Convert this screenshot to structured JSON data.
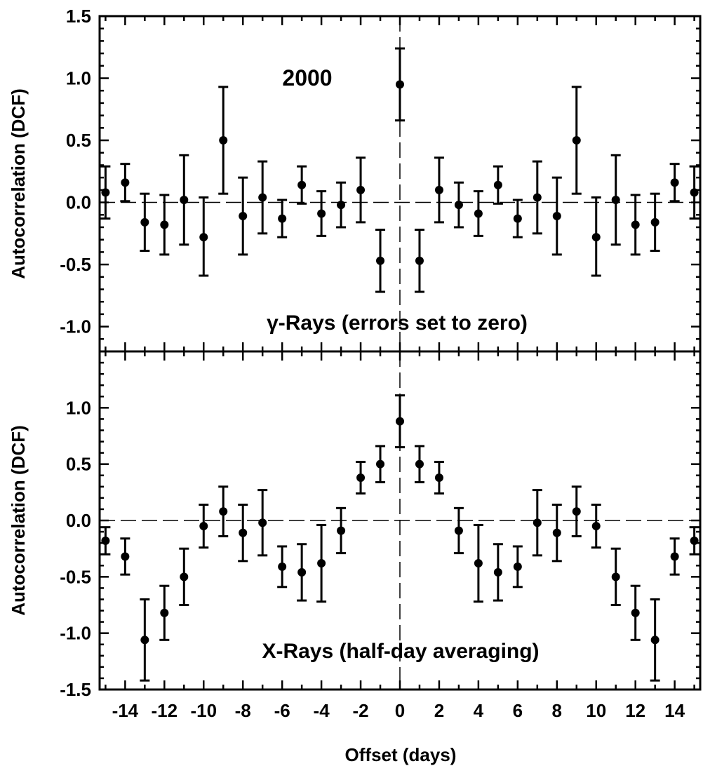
{
  "figure": {
    "xlabel": "Offset (days)",
    "annotation_year": "2000",
    "x_tick_labels": [
      "-14",
      "-12",
      "-10",
      "-8",
      "-6",
      "-4",
      "-2",
      "0",
      "2",
      "4",
      "6",
      "8",
      "10",
      "12",
      "14"
    ]
  },
  "chart_data": [
    {
      "type": "scatter",
      "panel": "top",
      "ylabel": "Autocorrelation (DCF)",
      "label": "γ-Rays (errors set to zero)",
      "xlim": [
        -15.3,
        15.3
      ],
      "ylim": [
        -1.2,
        1.5
      ],
      "y_ticks": [
        1.5,
        1.0,
        0.5,
        0.0,
        -0.5,
        -1.0
      ],
      "y_tick_labels": [
        "1.5",
        "1.0",
        "0.5",
        "0.0",
        "-0.5",
        "-1.0"
      ],
      "grid": false,
      "reference_lines": {
        "y": 0,
        "x": 0,
        "style": "dashed"
      },
      "points": [
        {
          "x": -15,
          "y": 0.08,
          "err_low": 0.21,
          "err_high": 0.21
        },
        {
          "x": -14,
          "y": 0.16,
          "err_low": 0.15,
          "err_high": 0.15
        },
        {
          "x": -13,
          "y": -0.16,
          "err_low": 0.23,
          "err_high": 0.23
        },
        {
          "x": -12,
          "y": -0.18,
          "err_low": 0.24,
          "err_high": 0.24
        },
        {
          "x": -11,
          "y": 0.02,
          "err_low": 0.36,
          "err_high": 0.36
        },
        {
          "x": -10,
          "y": -0.28,
          "err_low": 0.31,
          "err_high": 0.32
        },
        {
          "x": -9,
          "y": 0.5,
          "err_low": 0.43,
          "err_high": 0.43
        },
        {
          "x": -8,
          "y": -0.11,
          "err_low": 0.31,
          "err_high": 0.31
        },
        {
          "x": -7,
          "y": 0.04,
          "err_low": 0.29,
          "err_high": 0.29
        },
        {
          "x": -6,
          "y": -0.13,
          "err_low": 0.15,
          "err_high": 0.15
        },
        {
          "x": -5,
          "y": 0.14,
          "err_low": 0.15,
          "err_high": 0.15
        },
        {
          "x": -4,
          "y": -0.09,
          "err_low": 0.18,
          "err_high": 0.18
        },
        {
          "x": -3,
          "y": -0.02,
          "err_low": 0.18,
          "err_high": 0.18
        },
        {
          "x": -2,
          "y": 0.1,
          "err_low": 0.26,
          "err_high": 0.26
        },
        {
          "x": -1,
          "y": -0.47,
          "err_low": 0.25,
          "err_high": 0.25
        },
        {
          "x": 0,
          "y": 0.95,
          "err_low": 0.29,
          "err_high": 0.29
        },
        {
          "x": 1,
          "y": -0.47,
          "err_low": 0.25,
          "err_high": 0.25
        },
        {
          "x": 2,
          "y": 0.1,
          "err_low": 0.26,
          "err_high": 0.26
        },
        {
          "x": 3,
          "y": -0.02,
          "err_low": 0.18,
          "err_high": 0.18
        },
        {
          "x": 4,
          "y": -0.09,
          "err_low": 0.18,
          "err_high": 0.18
        },
        {
          "x": 5,
          "y": 0.14,
          "err_low": 0.15,
          "err_high": 0.15
        },
        {
          "x": 6,
          "y": -0.13,
          "err_low": 0.15,
          "err_high": 0.15
        },
        {
          "x": 7,
          "y": 0.04,
          "err_low": 0.29,
          "err_high": 0.29
        },
        {
          "x": 8,
          "y": -0.11,
          "err_low": 0.31,
          "err_high": 0.31
        },
        {
          "x": 9,
          "y": 0.5,
          "err_low": 0.43,
          "err_high": 0.43
        },
        {
          "x": 10,
          "y": -0.28,
          "err_low": 0.31,
          "err_high": 0.32
        },
        {
          "x": 11,
          "y": 0.02,
          "err_low": 0.36,
          "err_high": 0.36
        },
        {
          "x": 12,
          "y": -0.18,
          "err_low": 0.24,
          "err_high": 0.24
        },
        {
          "x": 13,
          "y": -0.16,
          "err_low": 0.23,
          "err_high": 0.23
        },
        {
          "x": 14,
          "y": 0.16,
          "err_low": 0.15,
          "err_high": 0.15
        },
        {
          "x": 15,
          "y": 0.08,
          "err_low": 0.21,
          "err_high": 0.21
        }
      ]
    },
    {
      "type": "scatter",
      "panel": "bottom",
      "ylabel": "Autocorrelation (DCF)",
      "label": "X-Rays (half-day averaging)",
      "xlim": [
        -15.3,
        15.3
      ],
      "ylim": [
        -1.5,
        1.5
      ],
      "y_ticks": [
        1.0,
        0.5,
        0.0,
        -0.5,
        -1.0,
        -1.5
      ],
      "y_tick_labels": [
        "1.0",
        "0.5",
        "0.0",
        "-0.5",
        "-1.0",
        "-1.5"
      ],
      "grid": false,
      "reference_lines": {
        "y": 0,
        "x": 0,
        "style": "dashed"
      },
      "points": [
        {
          "x": -15,
          "y": -0.18,
          "err_low": 0.12,
          "err_high": 0.12
        },
        {
          "x": -14,
          "y": -0.32,
          "err_low": 0.16,
          "err_high": 0.16
        },
        {
          "x": -13,
          "y": -1.06,
          "err_low": 0.36,
          "err_high": 0.36
        },
        {
          "x": -12,
          "y": -0.82,
          "err_low": 0.24,
          "err_high": 0.24
        },
        {
          "x": -11,
          "y": -0.5,
          "err_low": 0.25,
          "err_high": 0.25
        },
        {
          "x": -10,
          "y": -0.05,
          "err_low": 0.19,
          "err_high": 0.19
        },
        {
          "x": -9,
          "y": 0.08,
          "err_low": 0.22,
          "err_high": 0.22
        },
        {
          "x": -8,
          "y": -0.11,
          "err_low": 0.25,
          "err_high": 0.25
        },
        {
          "x": -7,
          "y": -0.02,
          "err_low": 0.29,
          "err_high": 0.29
        },
        {
          "x": -6,
          "y": -0.41,
          "err_low": 0.18,
          "err_high": 0.18
        },
        {
          "x": -5,
          "y": -0.46,
          "err_low": 0.25,
          "err_high": 0.25
        },
        {
          "x": -4,
          "y": -0.38,
          "err_low": 0.34,
          "err_high": 0.34
        },
        {
          "x": -3,
          "y": -0.09,
          "err_low": 0.2,
          "err_high": 0.2
        },
        {
          "x": -2,
          "y": 0.38,
          "err_low": 0.14,
          "err_high": 0.14
        },
        {
          "x": -1,
          "y": 0.5,
          "err_low": 0.16,
          "err_high": 0.16
        },
        {
          "x": 0,
          "y": 0.88,
          "err_low": 0.23,
          "err_high": 0.23
        },
        {
          "x": 1,
          "y": 0.5,
          "err_low": 0.16,
          "err_high": 0.16
        },
        {
          "x": 2,
          "y": 0.38,
          "err_low": 0.14,
          "err_high": 0.14
        },
        {
          "x": 3,
          "y": -0.09,
          "err_low": 0.2,
          "err_high": 0.2
        },
        {
          "x": 4,
          "y": -0.38,
          "err_low": 0.34,
          "err_high": 0.34
        },
        {
          "x": 5,
          "y": -0.46,
          "err_low": 0.25,
          "err_high": 0.25
        },
        {
          "x": 6,
          "y": -0.41,
          "err_low": 0.18,
          "err_high": 0.18
        },
        {
          "x": 7,
          "y": -0.02,
          "err_low": 0.29,
          "err_high": 0.29
        },
        {
          "x": 8,
          "y": -0.11,
          "err_low": 0.25,
          "err_high": 0.25
        },
        {
          "x": 9,
          "y": 0.08,
          "err_low": 0.22,
          "err_high": 0.22
        },
        {
          "x": 10,
          "y": -0.05,
          "err_low": 0.19,
          "err_high": 0.19
        },
        {
          "x": 11,
          "y": -0.5,
          "err_low": 0.25,
          "err_high": 0.25
        },
        {
          "x": 12,
          "y": -0.82,
          "err_low": 0.24,
          "err_high": 0.24
        },
        {
          "x": 13,
          "y": -1.06,
          "err_low": 0.36,
          "err_high": 0.36
        },
        {
          "x": 14,
          "y": -0.32,
          "err_low": 0.16,
          "err_high": 0.16
        },
        {
          "x": 15,
          "y": -0.18,
          "err_low": 0.12,
          "err_high": 0.12
        }
      ]
    }
  ]
}
